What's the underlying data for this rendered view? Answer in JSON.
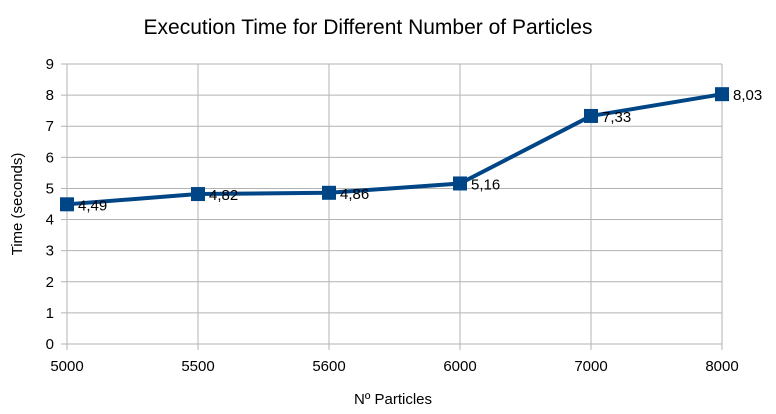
{
  "chart_data": {
    "type": "line",
    "title": "Execution Time for Different Number of Particles",
    "xlabel": "Nº Particles",
    "ylabel": "Time (seconds)",
    "categories": [
      "5000",
      "5500",
      "5600",
      "6000",
      "7000",
      "8000"
    ],
    "series": [
      {
        "values": [
          4.49,
          4.82,
          4.86,
          5.16,
          7.33,
          8.03
        ],
        "labels": [
          "4,49",
          "4,82",
          "4,86",
          "5,16",
          "7,33",
          "8,03"
        ],
        "color": "#004586",
        "marker": "square"
      }
    ],
    "ylim": [
      0,
      9
    ],
    "yticks": [
      "0",
      "1",
      "2",
      "3",
      "4",
      "5",
      "6",
      "7",
      "8",
      "9"
    ],
    "grid": true,
    "legend": "none"
  }
}
